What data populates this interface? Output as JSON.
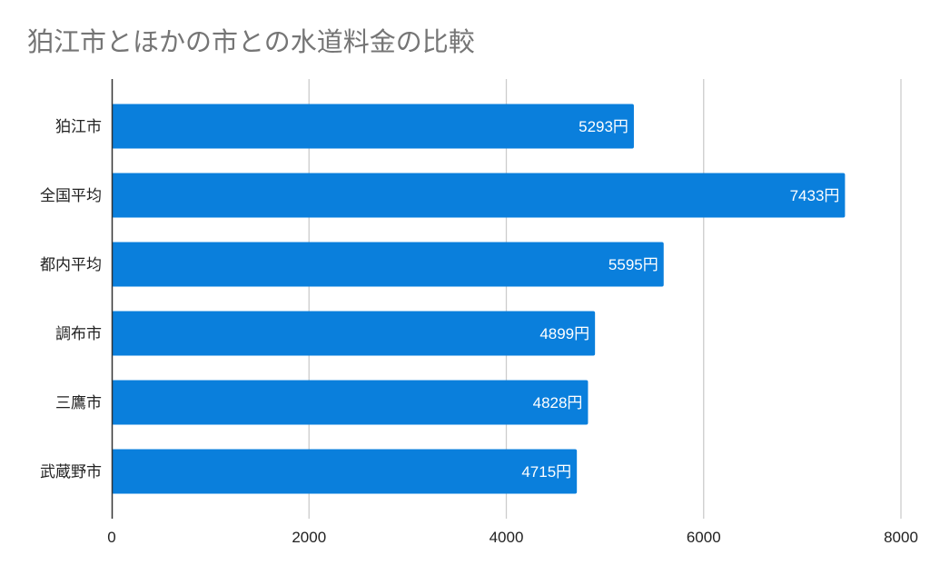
{
  "chart_data": {
    "type": "bar",
    "orientation": "horizontal",
    "title": "狛江市とほかの市との水道料金の比較",
    "categories": [
      "狛江市",
      "全国平均",
      "都内平均",
      "調布市",
      "三鷹市",
      "武蔵野市"
    ],
    "values": [
      5293,
      7433,
      5595,
      4899,
      4828,
      4715
    ],
    "data_labels": [
      "5293円",
      "7433円",
      "5595円",
      "4899円",
      "4828円",
      "4715円"
    ],
    "xlim": [
      0,
      8000
    ],
    "x_ticks": [
      "0",
      "2000",
      "4000",
      "6000",
      "8000"
    ],
    "xlabel": "",
    "ylabel": "",
    "grid": true,
    "legend": "none",
    "colors": {
      "bar": "#0a7fdc",
      "title": "#757575",
      "grid": "#cccccc",
      "axis": "#333333"
    }
  }
}
